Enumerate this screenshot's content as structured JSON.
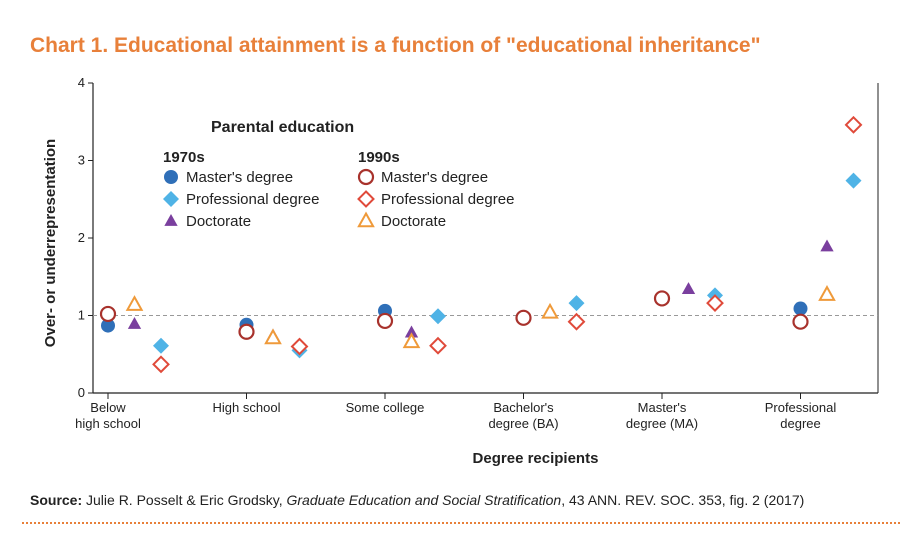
{
  "title": "Chart 1. Educational attainment is a function of \"educational inheritance\"",
  "source": {
    "label": "Source:",
    "authors": " Julie R. Posselt & Eric Grodsky, ",
    "work": "Graduate Education and Social Stratification",
    "citation": ", 43 ANN. REV. SOC. 353, fig. 2 (2017)"
  },
  "colors": {
    "blue": "#2f6fb8",
    "light_blue": "#4fb3e6",
    "purple": "#7a3f9e",
    "dark_red": "#a8322c",
    "red": "#e04a3a",
    "orange": "#ef9a3a"
  },
  "chart_data": {
    "type": "scatter",
    "title": "Chart 1. Educational attainment is a function of \"educational inheritance\"",
    "xlabel": "Degree recipients",
    "ylabel": "Over- or underrepresentation",
    "ylim": [
      0,
      4
    ],
    "yticks": [
      0,
      1,
      2,
      3,
      4
    ],
    "reference_line": 1,
    "categories": [
      "Below\nhigh school",
      "High school",
      "Some college",
      "Bachelor's\ndegree (BA)",
      "Master's\ndegree (MA)",
      "Professional\ndegree"
    ],
    "legend": {
      "title": "Parental education",
      "group_1970": "1970s",
      "group_1990": "1990s",
      "placement": "top-left"
    },
    "series": [
      {
        "name": "Master's degree",
        "decade": "1970s",
        "marker": "circle-filled",
        "color": "#2f6fb8",
        "offset": 0,
        "values": [
          0.87,
          0.88,
          1.06,
          0.97,
          1.23,
          1.09
        ]
      },
      {
        "name": "Professional degree",
        "decade": "1970s",
        "marker": "diamond-filled",
        "color": "#4fb3e6",
        "offset": 2,
        "values": [
          0.61,
          0.55,
          0.99,
          1.16,
          1.26,
          2.74
        ]
      },
      {
        "name": "Doctorate",
        "decade": "1970s",
        "marker": "triangle-filled",
        "color": "#7a3f9e",
        "offset": 1,
        "values": [
          0.89,
          0.74,
          0.78,
          1.05,
          1.34,
          1.89
        ]
      },
      {
        "name": "Master's degree",
        "decade": "1990s",
        "marker": "circle-open",
        "color": "#a8322c",
        "offset": 0,
        "values": [
          1.02,
          0.79,
          0.93,
          0.97,
          1.22,
          0.92
        ]
      },
      {
        "name": "Professional degree",
        "decade": "1990s",
        "marker": "diamond-open",
        "color": "#e04a3a",
        "offset": 2,
        "values": [
          0.37,
          0.6,
          0.61,
          0.92,
          1.16,
          3.46
        ]
      },
      {
        "name": "Doctorate",
        "decade": "1990s",
        "marker": "triangle-open",
        "color": "#ef9a3a",
        "offset": 1,
        "values": [
          1.14,
          0.71,
          0.66,
          1.04,
          null,
          1.27
        ]
      }
    ]
  }
}
